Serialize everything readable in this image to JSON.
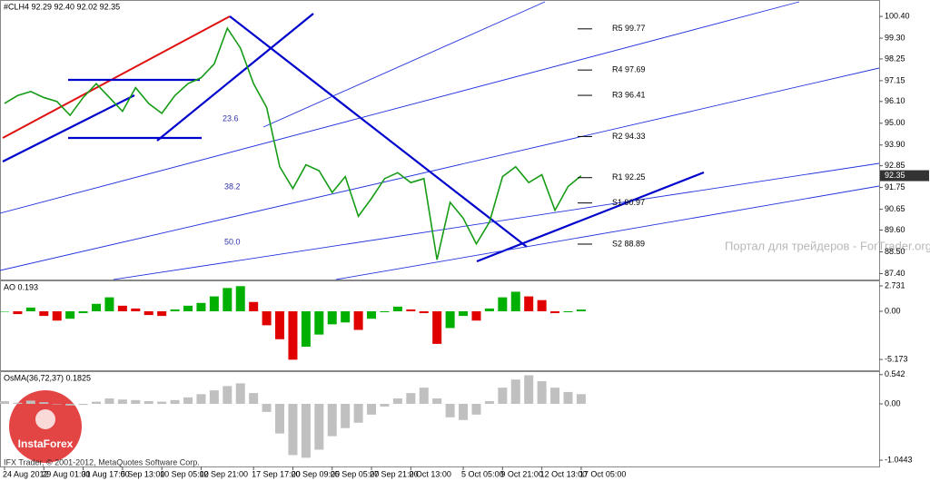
{
  "chart_data": [
    {
      "type": "line",
      "title": "#CLH4  92.29 92.40 92.02 92.35",
      "color": "#169c16",
      "categories": [
        "24 Aug 2012",
        null,
        null,
        "29 Aug 01:00",
        null,
        null,
        "31 Aug 17:00",
        null,
        null,
        "5 Sep 13:00",
        null,
        null,
        "10 Sep 05:00",
        null,
        null,
        "12 Sep 21:00",
        null,
        null,
        null,
        "17 Sep 17:00",
        null,
        null,
        "20 Sep 09:00",
        null,
        null,
        "25 Sep 05:00",
        null,
        null,
        "27 Sep 21:00",
        null,
        null,
        "2 Oct 13:00",
        null,
        null,
        null,
        "5 Oct 05:00",
        null,
        null,
        "9 Oct 21:00",
        null,
        null,
        "12 Oct 13:00",
        null,
        null,
        "17 Oct 05:00"
      ],
      "values": [
        96.0,
        96.4,
        96.6,
        96.3,
        96.1,
        95.4,
        96.3,
        97.0,
        96.3,
        95.6,
        96.8,
        96.0,
        95.5,
        96.4,
        97.0,
        97.3,
        98.0,
        99.8,
        98.8,
        97.0,
        95.8,
        92.8,
        91.7,
        92.9,
        92.6,
        91.5,
        92.3,
        90.3,
        91.2,
        92.2,
        92.5,
        92.0,
        92.2,
        88.1,
        91.0,
        90.2,
        88.9,
        90.0,
        92.3,
        92.8,
        92.0,
        92.4,
        90.6,
        91.8,
        92.35
      ],
      "ylim": [
        87.1,
        101.0
      ],
      "yticks": [
        {
          "value": 100.4,
          "label": "100.40"
        },
        {
          "value": 99.3,
          "label": "99.30"
        },
        98.25,
        97.15,
        {
          "value": 96.1,
          "label": "96.10"
        },
        {
          "value": 95.0,
          "label": "95.00"
        },
        {
          "value": 93.9,
          "label": "93.90"
        },
        92.85,
        91.75,
        90.65,
        {
          "value": 89.6,
          "label": "89.60"
        },
        {
          "value": 88.5,
          "label": "88.50"
        },
        {
          "value": 87.4,
          "label": "87.40"
        }
      ],
      "current_price": 92.35,
      "pivots": [
        {
          "label": "R5 99.77",
          "value": 99.77
        },
        {
          "label": "R4 97.69",
          "value": 97.69
        },
        {
          "label": "R3 96.41",
          "value": 96.41
        },
        {
          "label": "R2 94.33",
          "value": 94.33
        },
        {
          "label": "R1 92.25",
          "value": 92.25
        },
        {
          "label": "S1 90.97",
          "value": 90.97
        },
        {
          "label": "S2 88.89",
          "value": 88.89
        }
      ],
      "fib_labels": [
        "23.6",
        "38.2",
        "50.0"
      ],
      "watermark": "Портал для трейдеров - ForTrader.org",
      "copyright": "IFX Trader, © 2001-2012, MetaQuotes Software Corp.",
      "logo": "InstaForex"
    },
    {
      "type": "bar",
      "title": "AO 0.193",
      "up_color": "#00b000",
      "down_color": "#e00000",
      "values": [
        0.0,
        -0.3,
        0.4,
        -0.5,
        -1.0,
        -0.8,
        -0.2,
        0.8,
        1.5,
        0.6,
        0.3,
        -0.4,
        -0.5,
        0.2,
        0.6,
        0.9,
        1.6,
        2.5,
        2.7,
        1.0,
        -1.5,
        -3.0,
        -5.2,
        -3.8,
        -2.5,
        -1.4,
        -1.2,
        -2.0,
        -0.8,
        -0.1,
        0.5,
        0.2,
        -0.2,
        -3.5,
        -1.8,
        -0.5,
        -1.0,
        0.3,
        1.5,
        2.1,
        1.6,
        1.2,
        -0.2,
        -0.1,
        0.19
      ],
      "ylim": [
        -6.24,
        3.12
      ],
      "yticks": [
        2.731,
        {
          "value": 0,
          "label": "0.00"
        },
        -5.173
      ]
    },
    {
      "type": "bar",
      "title": "OsMA(36,72,37) 0.1825",
      "color": "#c0c0c0",
      "values": [
        0.05,
        0.02,
        0.06,
        0.03,
        0.0,
        -0.03,
        -0.02,
        0.04,
        0.1,
        0.08,
        0.07,
        0.05,
        0.04,
        0.07,
        0.12,
        0.18,
        0.25,
        0.33,
        0.38,
        0.2,
        -0.15,
        -0.55,
        -0.95,
        -1.0,
        -0.85,
        -0.6,
        -0.45,
        -0.35,
        -0.2,
        -0.05,
        0.1,
        0.2,
        0.3,
        0.1,
        -0.25,
        -0.3,
        -0.2,
        0.05,
        0.3,
        0.45,
        0.53,
        0.42,
        0.3,
        0.22,
        0.18
      ],
      "ylim": [
        -1.128,
        0.572
      ],
      "yticks": [
        0.542,
        {
          "value": 0,
          "label": "0.00"
        },
        -1.0443
      ]
    }
  ]
}
